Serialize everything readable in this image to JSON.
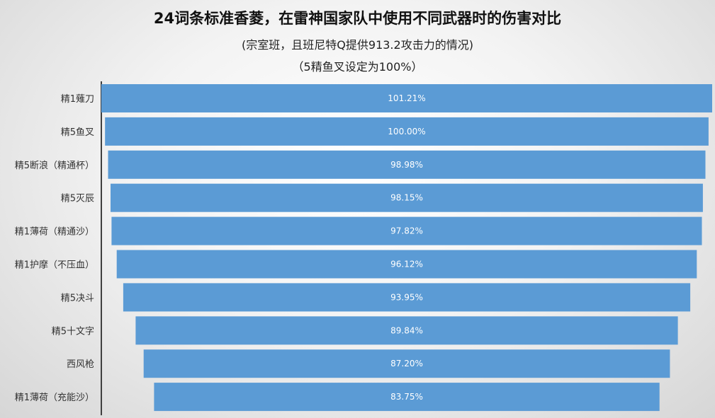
{
  "chart_data": {
    "type": "bar",
    "orientation": "horizontal",
    "layout": "funnel-centered",
    "title": "24词条标准香菱，在雷神国家队中使用不同武器时的伤害对比",
    "subtitle": "(宗室班，且班尼特Q提供913.2攻击力的情况)",
    "subtitle2": "（5精鱼叉设定为100%）",
    "categories": [
      "精1薙刀",
      "精5鱼叉",
      "精5断浪（精通杯）",
      "精5灭辰",
      "精1薄荷（精通沙）",
      "精1护摩（不压血）",
      "精5决斗",
      "精5十文字",
      "西风枪",
      "精1薄荷（充能沙）"
    ],
    "values": [
      101.21,
      100.0,
      98.98,
      98.15,
      97.82,
      96.12,
      93.95,
      89.84,
      87.2,
      83.75
    ],
    "value_labels": [
      "101.21%",
      "100.00%",
      "98.98%",
      "98.15%",
      "97.82%",
      "96.12%",
      "93.95%",
      "89.84%",
      "87.20%",
      "83.75%"
    ],
    "bar_color": "#5b9bd5",
    "axis_color": "#404040",
    "grid": false,
    "legend": "none"
  }
}
